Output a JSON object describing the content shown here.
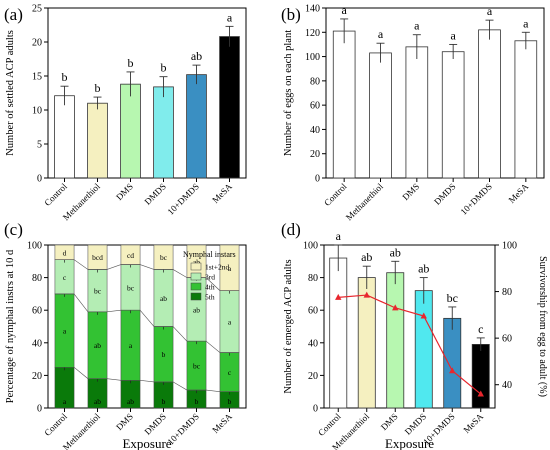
{
  "chart_data": [
    {
      "panel": "(a)",
      "type": "bar",
      "ylabel": "Number of settled ACP adults",
      "categories": [
        "Control",
        "Methanethiol",
        "DMS",
        "DMDS",
        "10+DMDS",
        "MeSA"
      ],
      "values": [
        12.1,
        11.0,
        13.8,
        13.4,
        15.2,
        20.8
      ],
      "errors": [
        1.4,
        0.9,
        1.8,
        1.5,
        1.4,
        1.5
      ],
      "letters": [
        "b",
        "b",
        "b",
        "b",
        "ab",
        "a"
      ],
      "colors": [
        "#ffffff",
        "#f5f0c0",
        "#b7f7b0",
        "#80ecec",
        "#3a8fc2",
        "#000000"
      ],
      "ylim": [
        0,
        25
      ],
      "yticks": [
        0,
        5,
        10,
        15,
        20,
        25
      ]
    },
    {
      "panel": "(b)",
      "type": "bar",
      "ylabel": "Number of eggs on each plant",
      "categories": [
        "Control",
        "Methanethiol",
        "DMS",
        "DMDS",
        "10+DMDS",
        "MeSA"
      ],
      "values": [
        121,
        103,
        108,
        104,
        122,
        113
      ],
      "errors": [
        10,
        8,
        10,
        6,
        8,
        7
      ],
      "letters": [
        "a",
        "a",
        "a",
        "a",
        "a",
        "a"
      ],
      "colors": [
        "#ffffff",
        "#ffffff",
        "#ffffff",
        "#ffffff",
        "#ffffff",
        "#ffffff"
      ],
      "ylim": [
        0,
        140
      ],
      "yticks": [
        0,
        20,
        40,
        60,
        80,
        100,
        120,
        140
      ]
    },
    {
      "panel": "(c)",
      "type": "stacked-bar",
      "ylabel": "Percentage of nymphal instrs at 10 d",
      "xlabel": "Exposure",
      "categories": [
        "Control",
        "Methanethiol",
        "DMS",
        "DMDS",
        "10+DMDS",
        "MeSA"
      ],
      "legend_title": "Nymphal instars",
      "series": [
        {
          "name": "5th",
          "color": "#0a7a0a",
          "values": [
            25,
            18,
            17,
            16,
            11,
            10
          ],
          "letters": [
            "a",
            "ab",
            "ab",
            "b",
            "b",
            "b"
          ]
        },
        {
          "name": "4th",
          "color": "#33c233",
          "values": [
            45,
            41,
            43,
            34,
            30,
            24
          ],
          "letters": [
            "a",
            "ab",
            "a",
            "b",
            "bc",
            "c"
          ]
        },
        {
          "name": "3rd",
          "color": "#b4edb4",
          "values": [
            21,
            26,
            28,
            35,
            39,
            38
          ],
          "letters": [
            "c",
            "bc",
            "bc",
            "ab",
            "ab",
            "a"
          ]
        },
        {
          "name": "1st+2nd",
          "color": "#f5f0c0",
          "values": [
            9,
            15,
            12,
            15,
            20,
            28
          ],
          "letters": [
            "d",
            "bcd",
            "cd",
            "bc",
            "ab",
            "a"
          ]
        }
      ],
      "ylim": [
        0,
        100
      ],
      "yticks": [
        0,
        20,
        40,
        60,
        80,
        100
      ]
    },
    {
      "panel": "(d)",
      "type": "bar+line",
      "ylabel": "Number of emerged ACP adults",
      "y2label": "Survivorship from egg to adult (%)",
      "xlabel": "Exposure",
      "categories": [
        "Control",
        "Methanethiol",
        "DMS",
        "DMDS",
        "10+DMDS",
        "MeSA"
      ],
      "values": [
        92,
        80,
        83,
        72,
        55,
        39
      ],
      "errors": [
        8,
        7,
        7,
        8,
        7,
        4
      ],
      "letters": [
        "a",
        "ab",
        "ab",
        "ab",
        "bc",
        "c"
      ],
      "colors": [
        "#ffffff",
        "#f5f0c0",
        "#b7f7b0",
        "#50e8ef",
        "#3a8fc2",
        "#000000"
      ],
      "ylim": [
        0,
        100
      ],
      "yticks": [
        0,
        20,
        40,
        60,
        80,
        100
      ],
      "line_values": [
        77.5,
        78.5,
        73,
        69.5,
        46,
        36
      ],
      "line_color": "#e8262d",
      "y2lim": [
        30,
        100
      ],
      "y2ticks": [
        40,
        60,
        80,
        100
      ]
    }
  ]
}
